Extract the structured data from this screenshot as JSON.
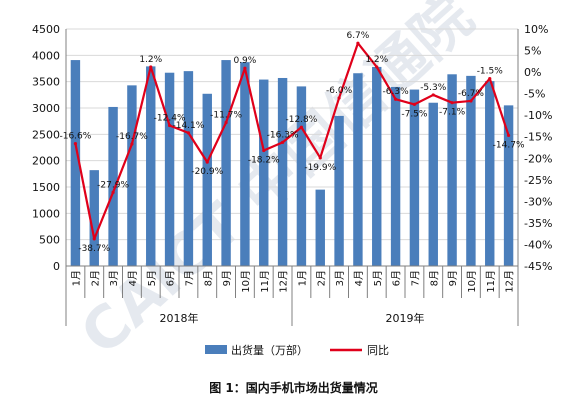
{
  "figure_caption": "图 1：国内手机市场出货量情况",
  "watermark": "CAICT 中国信通院",
  "colors": {
    "bar": "#4a7ebb",
    "line": "#e0001a",
    "grid": "#d9d9d9",
    "axis": "#808080",
    "watermark": "#b7c3d4"
  },
  "chart_data": {
    "type": "bar",
    "y_left": {
      "min": 0,
      "max": 4500,
      "step": 500,
      "ticks": [
        "0",
        "500",
        "1000",
        "1500",
        "2000",
        "2500",
        "3000",
        "3500",
        "4000",
        "4500"
      ]
    },
    "y_right": {
      "min": -45,
      "max": 10,
      "step": 5,
      "ticks": [
        "-45%",
        "-40%",
        "-35%",
        "-30%",
        "-25%",
        "-20%",
        "-15%",
        "-10%",
        "-5%",
        "0%",
        "5%",
        "10%"
      ]
    },
    "categories": [
      "1月",
      "2月",
      "3月",
      "4月",
      "5月",
      "6月",
      "7月",
      "8月",
      "9月",
      "10月",
      "11月",
      "12月",
      "1月",
      "2月",
      "3月",
      "4月",
      "5月",
      "6月",
      "7月",
      "8月",
      "9月",
      "10月",
      "11月",
      "12月"
    ],
    "groups": [
      {
        "label": "2018年",
        "count": 12
      },
      {
        "label": "2019年",
        "count": 12
      }
    ],
    "grid": true,
    "legend_position": "bottom",
    "series": [
      {
        "name": "出货量（万部）",
        "type": "bar",
        "axis": "left",
        "values": [
          3910,
          1820,
          3020,
          3430,
          3790,
          3670,
          3700,
          3270,
          3910,
          3870,
          3540,
          3570,
          3410,
          1450,
          2850,
          3660,
          3780,
          3400,
          3350,
          3100,
          3640,
          3610,
          3510,
          3050
        ]
      },
      {
        "name": "同比",
        "type": "line",
        "axis": "right",
        "values": [
          -16.6,
          -38.7,
          -27.9,
          -16.7,
          1.2,
          -12.4,
          -14.1,
          -20.9,
          -11.7,
          0.9,
          -18.2,
          -16.3,
          -12.8,
          -19.9,
          -6.0,
          6.7,
          1.2,
          -6.3,
          -7.5,
          -5.3,
          -7.1,
          -6.7,
          -1.5,
          -14.7
        ],
        "labels": [
          "-16.6%",
          "-38.7%",
          "-27.9%",
          "-16.7%",
          "1.2%",
          "-12.4%",
          "-14.1%",
          "-20.9%",
          "-11.7%",
          "0.9%",
          "-18.2%",
          "-16.3%",
          "-12.8%",
          "-19.9%",
          "-6.0%",
          "6.7%",
          "1.2%",
          "-6.3%",
          "-7.5%",
          "-5.3%",
          "-7.1%",
          "-6.7%",
          "-1.5%",
          "-14.7%"
        ]
      }
    ]
  }
}
